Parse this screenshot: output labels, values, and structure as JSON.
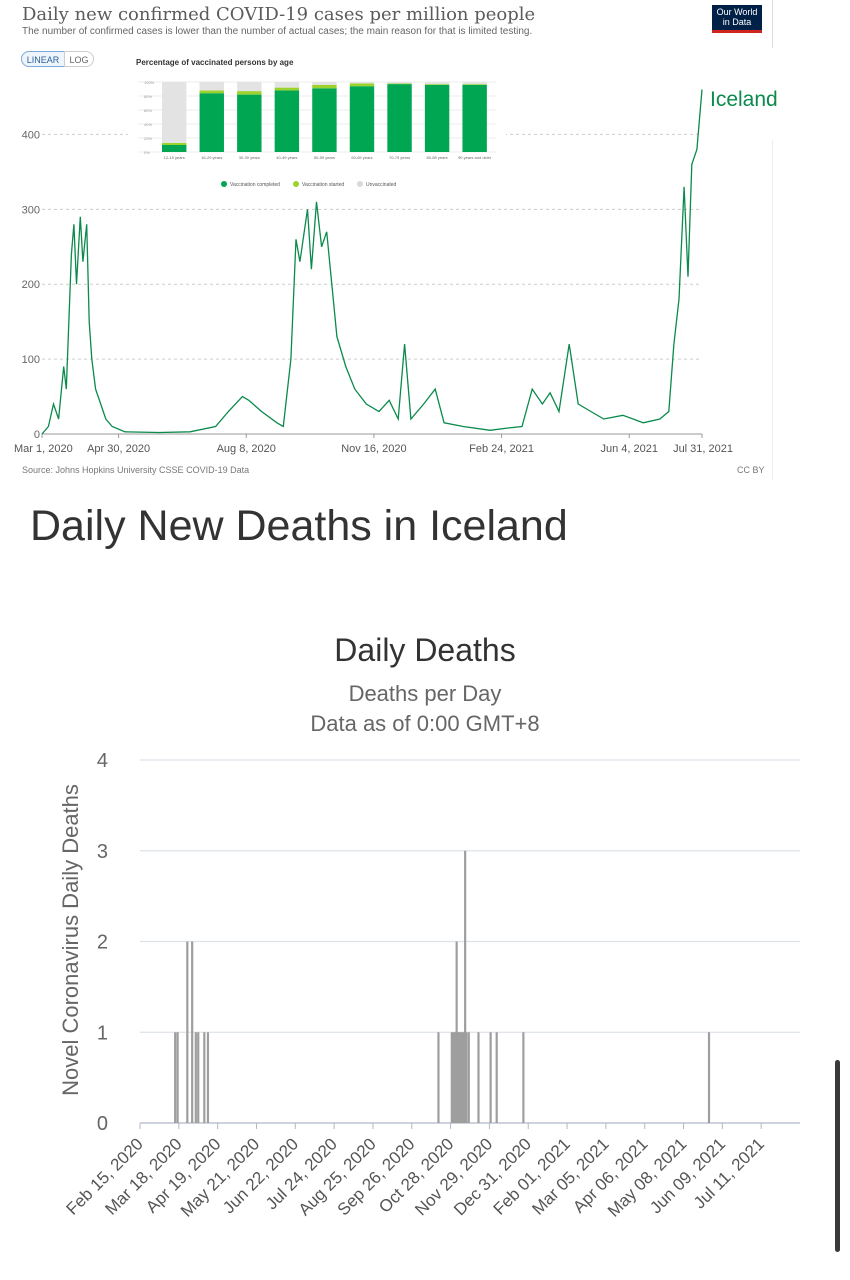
{
  "owid": {
    "title": "Daily new confirmed COVID-19 cases per million people",
    "subtitle": "The number of confirmed cases is lower than the number of actual cases; the main reason for that is limited testing.",
    "logo_line1": "Our World",
    "logo_line2": "in Data",
    "scale_linear": "LINEAR",
    "scale_log": "LOG",
    "source": "Source: Johns Hopkins University CSSE COVID-19 Data",
    "license": "CC BY",
    "series_label": "Iceland",
    "line_color": "#0a8a4b"
  },
  "vaccination": {
    "title": "Percentage of vaccinated persons by age",
    "legend": [
      "Vaccination completed",
      "Vaccination started",
      "Unvaccinated"
    ],
    "colors": [
      "#00a651",
      "#9bd22e",
      "#e3e3e3"
    ]
  },
  "deaths": {
    "heading": "Daily New Deaths in Iceland",
    "title": "Daily Deaths",
    "subtitle1": "Deaths per Day",
    "subtitle2": "Data as of 0:00 GMT+8",
    "ylabel": "Novel Coronavirus Daily Deaths",
    "bar_color": "#9e9e9e"
  },
  "chart_data": [
    {
      "type": "line",
      "title": "Daily new confirmed COVID-19 cases per million people",
      "subtitle": "The number of confirmed cases is lower than the number of actual cases; the main reason for that is limited testing.",
      "ylim": [
        0,
        470
      ],
      "y_ticks": [
        0,
        100,
        200,
        300,
        400
      ],
      "x_ticks": [
        "Mar 1, 2020",
        "Apr 30, 2020",
        "Aug 8, 2020",
        "Nov 16, 2020",
        "Feb 24, 2021",
        "Jun 4, 2021",
        "Jul 31, 2021"
      ],
      "grid": true,
      "series": [
        {
          "name": "Iceland",
          "points": [
            [
              "2020-03-01",
              0
            ],
            [
              "2020-03-06",
              10
            ],
            [
              "2020-03-10",
              40
            ],
            [
              "2020-03-14",
              20
            ],
            [
              "2020-03-18",
              90
            ],
            [
              "2020-03-20",
              60
            ],
            [
              "2020-03-24",
              240
            ],
            [
              "2020-03-26",
              280
            ],
            [
              "2020-03-28",
              200
            ],
            [
              "2020-03-31",
              290
            ],
            [
              "2020-04-02",
              230
            ],
            [
              "2020-04-05",
              280
            ],
            [
              "2020-04-07",
              150
            ],
            [
              "2020-04-09",
              100
            ],
            [
              "2020-04-12",
              60
            ],
            [
              "2020-04-16",
              40
            ],
            [
              "2020-04-20",
              20
            ],
            [
              "2020-04-25",
              10
            ],
            [
              "2020-05-05",
              3
            ],
            [
              "2020-06-01",
              2
            ],
            [
              "2020-06-25",
              3
            ],
            [
              "2020-07-15",
              10
            ],
            [
              "2020-07-25",
              30
            ],
            [
              "2020-08-05",
              50
            ],
            [
              "2020-08-10",
              45
            ],
            [
              "2020-08-20",
              30
            ],
            [
              "2020-09-01",
              15
            ],
            [
              "2020-09-06",
              10
            ],
            [
              "2020-09-12",
              100
            ],
            [
              "2020-09-16",
              260
            ],
            [
              "2020-09-19",
              230
            ],
            [
              "2020-09-25",
              300
            ],
            [
              "2020-09-28",
              220
            ],
            [
              "2020-10-02",
              310
            ],
            [
              "2020-10-06",
              250
            ],
            [
              "2020-10-10",
              270
            ],
            [
              "2020-10-14",
              200
            ],
            [
              "2020-10-18",
              130
            ],
            [
              "2020-10-25",
              90
            ],
            [
              "2020-11-01",
              60
            ],
            [
              "2020-11-10",
              40
            ],
            [
              "2020-11-20",
              30
            ],
            [
              "2020-11-28",
              45
            ],
            [
              "2020-12-05",
              20
            ],
            [
              "2020-12-10",
              120
            ],
            [
              "2020-12-15",
              20
            ],
            [
              "2020-12-25",
              40
            ],
            [
              "2021-01-03",
              60
            ],
            [
              "2021-01-10",
              15
            ],
            [
              "2021-01-25",
              10
            ],
            [
              "2021-02-15",
              5
            ],
            [
              "2021-03-01",
              8
            ],
            [
              "2021-03-12",
              10
            ],
            [
              "2021-03-20",
              60
            ],
            [
              "2021-03-28",
              40
            ],
            [
              "2021-04-03",
              55
            ],
            [
              "2021-04-10",
              30
            ],
            [
              "2021-04-18",
              120
            ],
            [
              "2021-04-25",
              40
            ],
            [
              "2021-05-05",
              30
            ],
            [
              "2021-05-15",
              20
            ],
            [
              "2021-05-30",
              25
            ],
            [
              "2021-06-15",
              15
            ],
            [
              "2021-06-28",
              20
            ],
            [
              "2021-07-05",
              30
            ],
            [
              "2021-07-09",
              120
            ],
            [
              "2021-07-13",
              180
            ],
            [
              "2021-07-17",
              330
            ],
            [
              "2021-07-20",
              210
            ],
            [
              "2021-07-23",
              360
            ],
            [
              "2021-07-27",
              380
            ],
            [
              "2021-07-31",
              460
            ]
          ]
        }
      ]
    },
    {
      "type": "bar",
      "title": "Percentage of vaccinated persons by age",
      "ylim": [
        0,
        100
      ],
      "categories": [
        "12-15 years",
        "16-29 years",
        "30-39 years",
        "40-49 years",
        "50-59 years",
        "60-69 years",
        "70-79 years",
        "80-89 years",
        "90 years and older"
      ],
      "series": [
        {
          "name": "Vaccination completed",
          "values": [
            10,
            84,
            82,
            88,
            91,
            94,
            97,
            96,
            96
          ]
        },
        {
          "name": "Vaccination started",
          "values": [
            3,
            4,
            5,
            4,
            5,
            4,
            1,
            1,
            1
          ]
        },
        {
          "name": "Unvaccinated",
          "values": [
            87,
            12,
            13,
            8,
            4,
            2,
            2,
            3,
            3
          ]
        }
      ]
    },
    {
      "type": "bar",
      "title": "Daily Deaths",
      "subtitle": "Deaths per Day",
      "ylabel": "Novel Coronavirus Daily Deaths",
      "ylim": [
        0,
        4
      ],
      "y_ticks": [
        0,
        1,
        2,
        3,
        4
      ],
      "x_ticks": [
        "Feb 15, 2020",
        "Mar 18, 2020",
        "Apr 19, 2020",
        "May 21, 2020",
        "Jun 22, 2020",
        "Jul 24, 2020",
        "Aug 25, 2020",
        "Sep 26, 2020",
        "Oct 28, 2020",
        "Nov 29, 2020",
        "Dec 31, 2020",
        "Feb 01, 2021",
        "Mar 05, 2021",
        "Apr 06, 2021",
        "May 08, 2021",
        "Jun 09, 2021",
        "Jul 11, 2021"
      ],
      "x_start": "2020-02-15",
      "x_end": "2021-08-12",
      "points": [
        [
          "2020-03-15",
          1
        ],
        [
          "2020-03-17",
          1
        ],
        [
          "2020-03-25",
          2
        ],
        [
          "2020-03-29",
          2
        ],
        [
          "2020-04-01",
          1
        ],
        [
          "2020-04-03",
          1
        ],
        [
          "2020-04-08",
          1
        ],
        [
          "2020-04-11",
          1
        ],
        [
          "2020-10-18",
          1
        ],
        [
          "2020-10-29",
          1
        ],
        [
          "2020-10-30",
          1
        ],
        [
          "2020-10-31",
          1
        ],
        [
          "2020-11-01",
          1
        ],
        [
          "2020-11-02",
          2
        ],
        [
          "2020-11-03",
          1
        ],
        [
          "2020-11-04",
          1
        ],
        [
          "2020-11-05",
          1
        ],
        [
          "2020-11-06",
          1
        ],
        [
          "2020-11-07",
          1
        ],
        [
          "2020-11-08",
          1
        ],
        [
          "2020-11-09",
          3
        ],
        [
          "2020-11-10",
          1
        ],
        [
          "2020-11-12",
          1
        ],
        [
          "2020-11-20",
          1
        ],
        [
          "2020-11-30",
          1
        ],
        [
          "2020-12-05",
          1
        ],
        [
          "2020-12-27",
          1
        ],
        [
          "2021-05-29",
          1
        ]
      ]
    }
  ]
}
